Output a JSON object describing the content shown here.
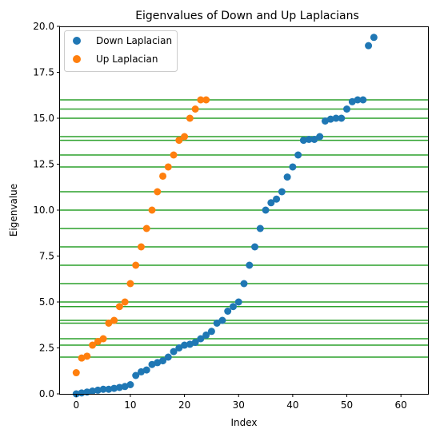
{
  "chart_data": {
    "type": "scatter",
    "title": "Eigenvalues of Down and Up Laplacians",
    "xlabel": "Index",
    "ylabel": "Eigenvalue",
    "xlim": [
      -3,
      65
    ],
    "ylim": [
      0,
      20
    ],
    "xticks": [
      0,
      10,
      20,
      30,
      40,
      50,
      60
    ],
    "xtick_labels": [
      "0",
      "10",
      "20",
      "30",
      "40",
      "50",
      "60"
    ],
    "yticks": [
      0,
      2.5,
      5,
      7.5,
      10,
      12.5,
      15,
      17.5,
      20
    ],
    "ytick_labels": [
      "0.0",
      "2.5",
      "5.0",
      "7.5",
      "10.0",
      "12.5",
      "15.0",
      "17.5",
      "20.0"
    ],
    "legend_position": "top-left",
    "grid": false,
    "series": [
      {
        "name": "Down Laplacian",
        "color": "#1f77b4",
        "x": [
          0,
          1,
          2,
          3,
          4,
          5,
          6,
          7,
          8,
          9,
          10,
          11,
          12,
          13,
          14,
          15,
          16,
          17,
          18,
          19,
          20,
          21,
          22,
          23,
          24,
          25,
          26,
          27,
          28,
          29,
          30,
          31,
          32,
          33,
          34,
          35,
          36,
          37,
          38,
          39,
          40,
          41,
          42,
          43,
          44,
          45,
          46,
          47,
          48,
          49,
          50,
          51,
          52,
          53,
          54,
          55
        ],
        "y": [
          0,
          0.05,
          0.1,
          0.15,
          0.2,
          0.25,
          0.25,
          0.3,
          0.35,
          0.4,
          0.5,
          1.0,
          1.2,
          1.3,
          1.6,
          1.7,
          1.8,
          2.0,
          2.3,
          2.5,
          2.65,
          2.7,
          2.8,
          3.0,
          3.2,
          3.4,
          3.85,
          4.0,
          4.5,
          4.75,
          5.0,
          6.0,
          7.0,
          8.0,
          9.0,
          10.0,
          10.4,
          10.6,
          11.0,
          11.8,
          12.35,
          13.0,
          13.8,
          13.85,
          13.85,
          14.0,
          14.85,
          14.95,
          15.0,
          15.0,
          15.5,
          15.9,
          16.0,
          16.0,
          18.95,
          19.4
        ]
      },
      {
        "name": "Up Laplacian",
        "color": "#ff7f0e",
        "x": [
          0,
          1,
          2,
          3,
          4,
          5,
          6,
          7,
          8,
          9,
          10,
          11,
          12,
          13,
          14,
          15,
          16,
          17,
          18,
          19,
          20,
          21,
          22,
          23,
          24
        ],
        "y": [
          1.15,
          1.95,
          2.05,
          2.65,
          2.85,
          3.0,
          3.85,
          4.0,
          4.75,
          5.0,
          6.0,
          7.0,
          8.0,
          9.0,
          10.0,
          11.0,
          11.85,
          12.35,
          13.0,
          13.8,
          14.0,
          15.0,
          15.5,
          16.0,
          16.0
        ]
      }
    ],
    "hlines": {
      "color": "#2ca02c",
      "y": [
        2.0,
        2.65,
        3.0,
        3.85,
        4.0,
        4.75,
        5.0,
        6.0,
        7.0,
        8.0,
        9.0,
        10.0,
        11.0,
        12.35,
        13.0,
        13.8,
        14.0,
        15.0,
        15.5,
        16.0
      ]
    }
  }
}
